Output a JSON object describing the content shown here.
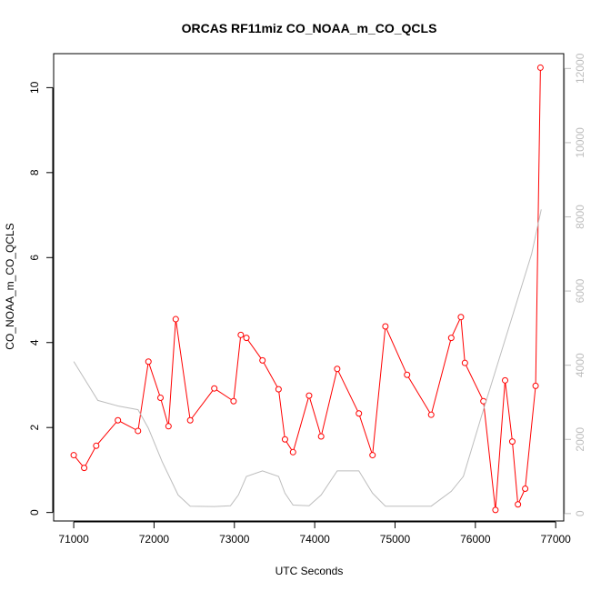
{
  "chart_data": {
    "type": "line",
    "title": "ORCAS RF11miz CO_NOAA_m_CO_QCLS",
    "xlabel": "UTC Seconds",
    "ylabel": "CO_NOAA_m_CO_QCLS",
    "xlim": [
      70750,
      77100
    ],
    "ylim": [
      -0.2,
      10.8
    ],
    "y2lim": [
      -200,
      12400
    ],
    "x_ticks": [
      71000,
      72000,
      73000,
      74000,
      75000,
      76000,
      77000
    ],
    "y_ticks": [
      0,
      2,
      4,
      6,
      8,
      10
    ],
    "y2_ticks": [
      0,
      2000,
      4000,
      6000,
      8000,
      10000,
      12000
    ],
    "series": [
      {
        "color": "#ff0000",
        "marker": "open-circle",
        "axis": "left",
        "x": [
          71000,
          71130,
          71280,
          71550,
          71800,
          71930,
          72080,
          72180,
          72270,
          72450,
          72750,
          72990,
          73080,
          73150,
          73350,
          73550,
          73630,
          73730,
          73930,
          74080,
          74280,
          74550,
          74720,
          74880,
          75150,
          75450,
          75700,
          75820,
          75870,
          76100,
          76250,
          76370,
          76460,
          76530,
          76620,
          76750,
          76810
        ],
        "y": [
          1.35,
          1.05,
          1.57,
          2.17,
          1.92,
          3.55,
          2.7,
          2.03,
          4.55,
          2.17,
          2.92,
          2.62,
          4.18,
          4.11,
          3.58,
          2.9,
          1.72,
          1.42,
          2.75,
          1.79,
          3.38,
          2.33,
          1.35,
          4.38,
          3.24,
          2.3,
          4.11,
          4.6,
          3.52,
          2.62,
          0.06,
          3.11,
          1.67,
          0.19,
          0.56,
          2.98,
          10.47
        ]
      },
      {
        "color": "#bdbdbd",
        "axis": "right",
        "x": [
          71000,
          71300,
          71550,
          71800,
          71930,
          72100,
          72300,
          72450,
          72750,
          72950,
          73050,
          73150,
          73350,
          73550,
          73630,
          73730,
          73930,
          74080,
          74280,
          74550,
          74720,
          74880,
          75150,
          75450,
          75700,
          75850,
          76100,
          76400,
          76700,
          76820
        ],
        "y": [
          4100,
          3050,
          2900,
          2800,
          2300,
          1400,
          500,
          200,
          190,
          210,
          500,
          1000,
          1150,
          1000,
          550,
          230,
          210,
          500,
          1150,
          1150,
          550,
          200,
          200,
          200,
          600,
          1000,
          2800,
          4900,
          7000,
          8200
        ]
      }
    ]
  }
}
